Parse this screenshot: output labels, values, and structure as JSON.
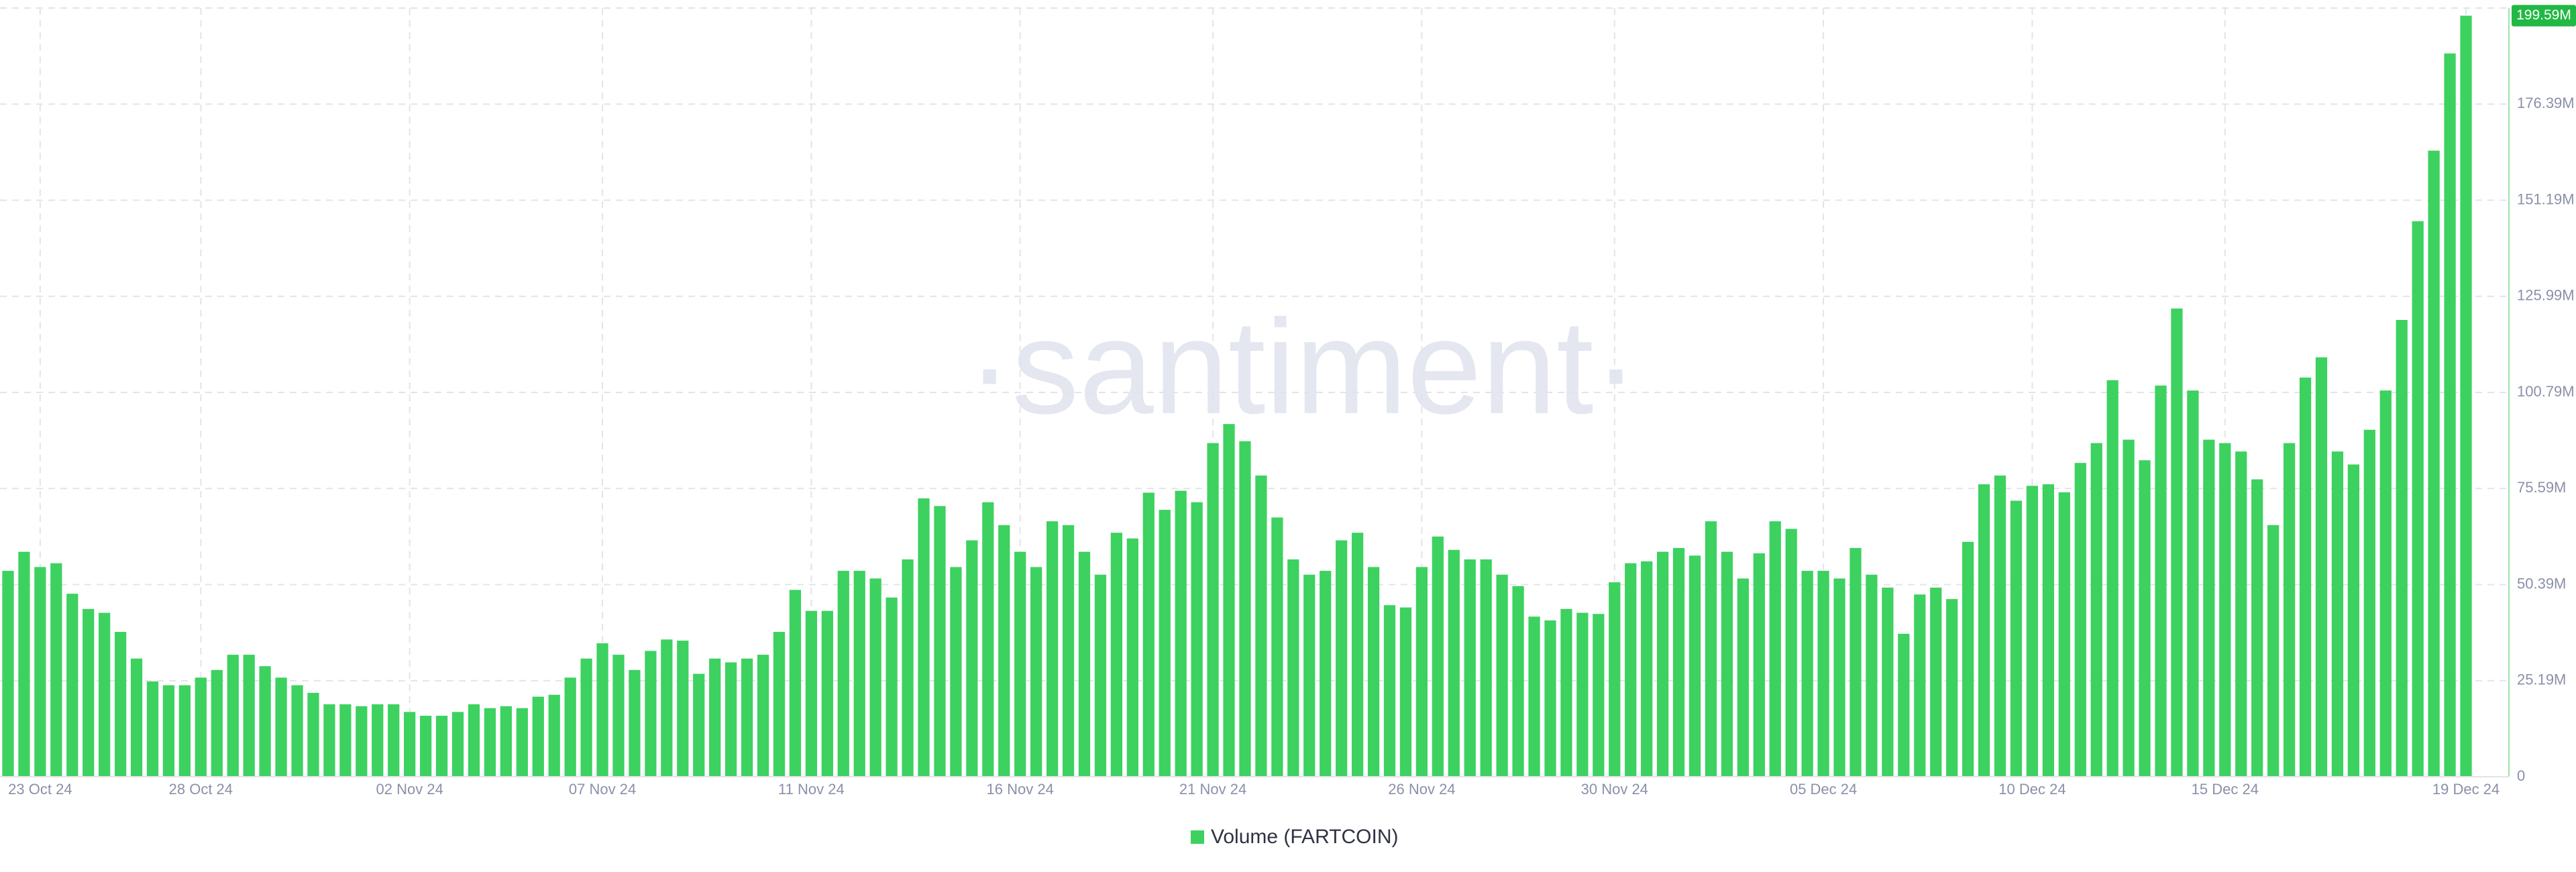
{
  "chart_data": {
    "type": "bar",
    "watermark": "·santiment·",
    "legend": "Volume (FARTCOIN)",
    "color": "#3dd160",
    "ylim": [
      0,
      201.6
    ],
    "yticks": [
      0,
      {
        "value": 25.19,
        "label": "25.19M"
      },
      {
        "value": 50.39,
        "label": "50.39M"
      },
      {
        "value": 75.59,
        "label": "75.59M"
      },
      {
        "value": 100.79,
        "label": "100.79M"
      },
      {
        "value": 125.99,
        "label": "125.99M"
      },
      {
        "value": 151.19,
        "label": "151.19M"
      },
      {
        "value": 176.39,
        "label": "176.39M"
      }
    ],
    "grid": true,
    "categories": [
      null,
      null,
      "23 Oct 24",
      null,
      null,
      null,
      null,
      null,
      null,
      null,
      null,
      null,
      "28 Oct 24",
      null,
      null,
      null,
      null,
      null,
      null,
      null,
      null,
      null,
      null,
      null,
      null,
      "02 Nov 24",
      null,
      null,
      null,
      null,
      null,
      null,
      null,
      null,
      null,
      null,
      null,
      "07 Nov 24",
      null,
      null,
      null,
      null,
      null,
      null,
      null,
      null,
      null,
      null,
      null,
      null,
      "11 Nov 24",
      null,
      null,
      null,
      null,
      null,
      null,
      null,
      null,
      null,
      null,
      null,
      null,
      "16 Nov 24",
      null,
      null,
      null,
      null,
      null,
      null,
      null,
      null,
      null,
      null,
      null,
      "21 Nov 24",
      null,
      null,
      null,
      null,
      null,
      null,
      null,
      null,
      null,
      null,
      null,
      null,
      "26 Nov 24",
      null,
      null,
      null,
      null,
      null,
      null,
      null,
      null,
      null,
      null,
      null,
      "30 Nov 24",
      null,
      null,
      null,
      null,
      null,
      null,
      null,
      null,
      null,
      null,
      null,
      null,
      "05 Dec 24",
      null,
      null,
      null,
      null,
      null,
      null,
      null,
      null,
      null,
      null,
      null,
      null,
      "10 Dec 24",
      null,
      null,
      null,
      null,
      null,
      null,
      null,
      null,
      null,
      null,
      null,
      "15 Dec 24",
      null,
      null,
      null,
      null,
      null,
      null,
      null,
      null,
      null,
      null,
      null,
      null,
      null,
      null,
      "19 Dec 24"
    ],
    "values": [
      54,
      59,
      55,
      56,
      48,
      44,
      43,
      38,
      31,
      25,
      24,
      24,
      26,
      28,
      32,
      32,
      29,
      26,
      24,
      22,
      19,
      19,
      18.5,
      19,
      19,
      17,
      16,
      16,
      17,
      19,
      18,
      18.5,
      18,
      21,
      21.5,
      26,
      31,
      35,
      32,
      28,
      33,
      36,
      35.7,
      27,
      31,
      30,
      31,
      32,
      38,
      49,
      43.5,
      43.5,
      54,
      54,
      52,
      47,
      57,
      73,
      71,
      55,
      62,
      72,
      66,
      59,
      55,
      67,
      66,
      59,
      53,
      64,
      62.5,
      74.5,
      70,
      75,
      72,
      87.5,
      92.5,
      88,
      79,
      68,
      57,
      53,
      54,
      62,
      64,
      55,
      45,
      44.4,
      55,
      63,
      59.5,
      57,
      57,
      53,
      50,
      42,
      41,
      44,
      43,
      42.7,
      51,
      56,
      56.5,
      59,
      60,
      58,
      67,
      59,
      52,
      58.6,
      67,
      65,
      54,
      54,
      52,
      60,
      53,
      49.6,
      37.5,
      47.8,
      49.6,
      46.6,
      61.6,
      76.7,
      79,
      72.4,
      76.3,
      76.7,
      74.6,
      82.3,
      87.5,
      104,
      88.4,
      83,
      102.6,
      122.8,
      101.3,
      88.4,
      87.5,
      85.3,
      78,
      66,
      87.5,
      104.7,
      110,
      85.3,
      81.9,
      91,
      101.3,
      119.8,
      145.7,
      164.2,
      189.7,
      199.59
    ],
    "value_labels": [
      null,
      null,
      null,
      null,
      null,
      null,
      null,
      null,
      null,
      null,
      null,
      null,
      null,
      null,
      null,
      null,
      null,
      null,
      null,
      null,
      null,
      null,
      null,
      null,
      null,
      null,
      null,
      null,
      null,
      null,
      null,
      null,
      null,
      null,
      null,
      null,
      null,
      null,
      null,
      null,
      null,
      null,
      null,
      null,
      null,
      null,
      null,
      null,
      null,
      null,
      null,
      null,
      null,
      null,
      null,
      null,
      null,
      null,
      null,
      null,
      null,
      null,
      null,
      null,
      null,
      null,
      null,
      null,
      null,
      null,
      null,
      null,
      null,
      null,
      null,
      null,
      null,
      null,
      null,
      null,
      null,
      null,
      null,
      null,
      null,
      null,
      null,
      null,
      null,
      null,
      null,
      null,
      null,
      null,
      null,
      null,
      null,
      null,
      null,
      null,
      null,
      null,
      null,
      null,
      null,
      null,
      null,
      null,
      null,
      null,
      null,
      null,
      null,
      null,
      null,
      null,
      null,
      null,
      null,
      null,
      null,
      null,
      null,
      null,
      null,
      null,
      null,
      null,
      null,
      null,
      null,
      null,
      null,
      null,
      null,
      null,
      null,
      null,
      null,
      null,
      null,
      null,
      null,
      null,
      null,
      null,
      null,
      null,
      null,
      null,
      null,
      null,
      null,
      "199.59M"
    ]
  }
}
